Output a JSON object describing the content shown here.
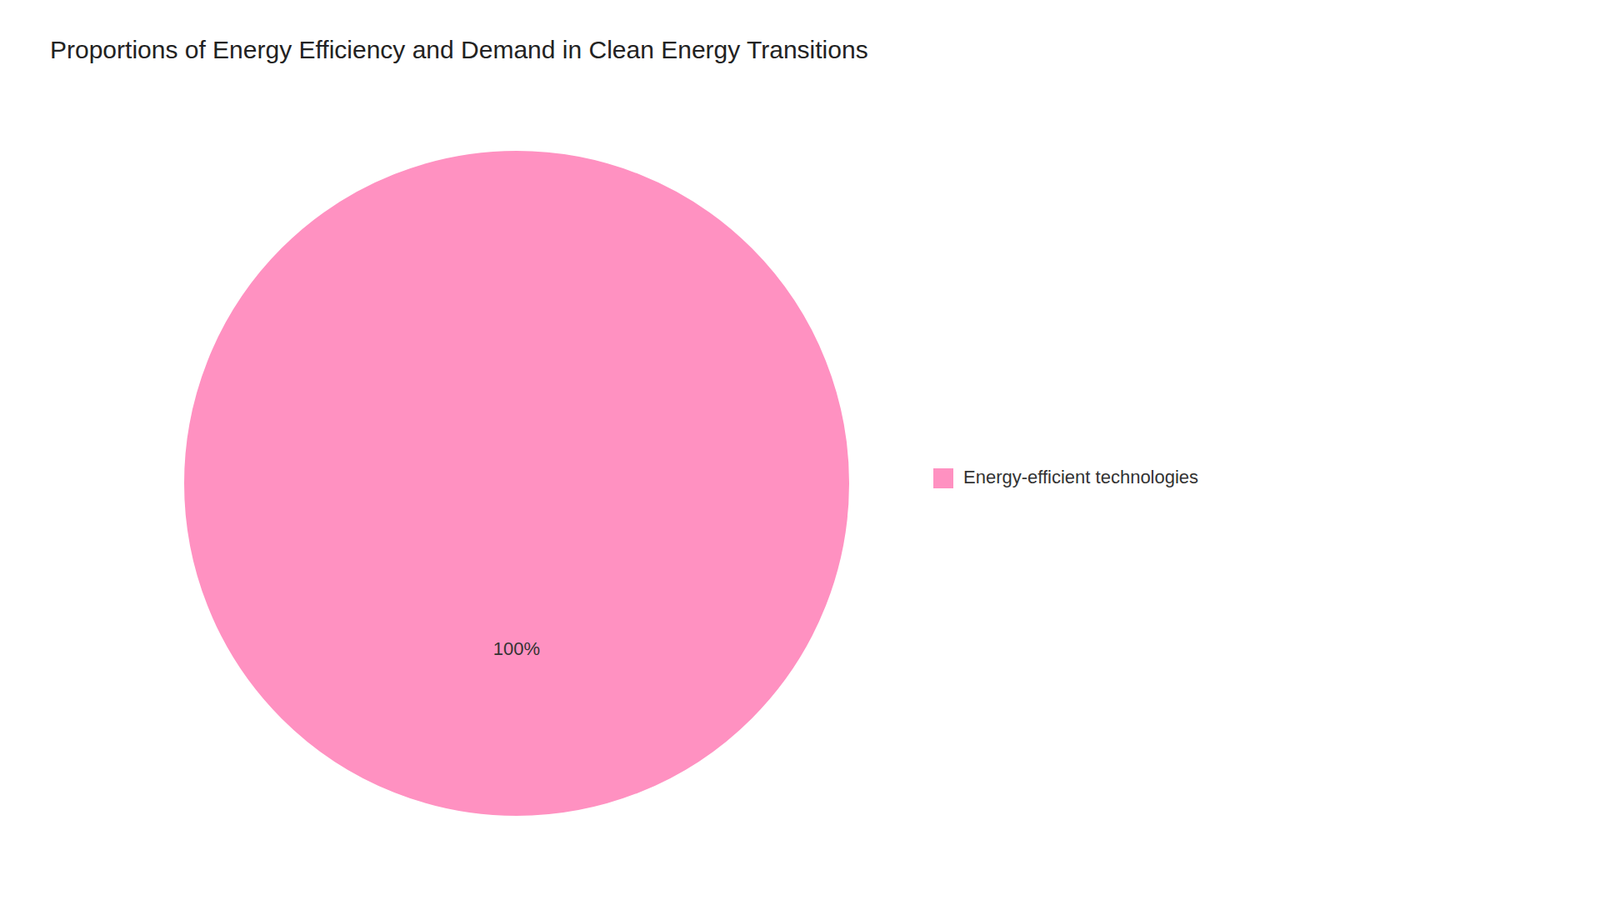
{
  "chart_data": {
    "type": "pie",
    "title": "Proportions of Energy Efficiency and Demand in Clean Energy Transitions",
    "categories": [
      "Energy-efficient technologies"
    ],
    "values": [
      100
    ],
    "value_labels": [
      "100%"
    ],
    "colors": [
      "#FF91C1"
    ],
    "data_labels": true,
    "legend": "right"
  }
}
